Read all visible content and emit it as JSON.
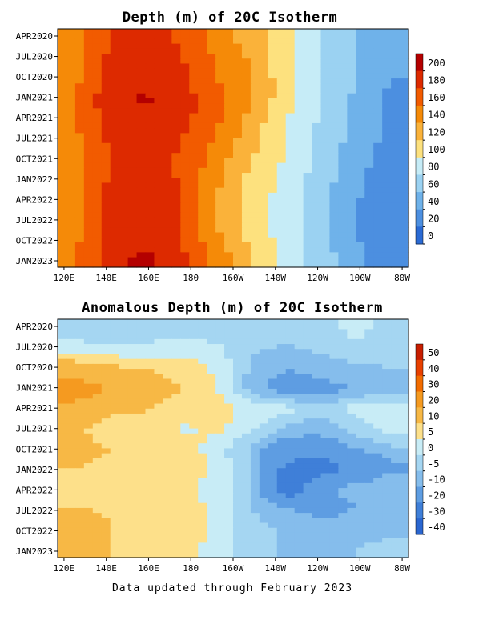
{
  "footer": "Data updated through February 2023",
  "chart_data": [
    {
      "type": "heatmap",
      "title": "Depth (m) of 20C Isotherm",
      "x_ticks": [
        "120E",
        "140E",
        "160E",
        "180",
        "160W",
        "140W",
        "120W",
        "100W",
        "80W"
      ],
      "x_values": [
        120,
        140,
        160,
        180,
        200,
        220,
        240,
        260,
        280
      ],
      "xlim": [
        117,
        283
      ],
      "y_ticks": [
        "APR2020",
        "JUL2020",
        "OCT2020",
        "JAN2021",
        "APR2021",
        "JUL2021",
        "OCT2021",
        "JAN2022",
        "APR2022",
        "JUL2022",
        "OCT2022",
        "JAN2023"
      ],
      "colorbar": {
        "labels": [
          "200",
          "180",
          "160",
          "140",
          "120",
          "100",
          "80",
          "60",
          "40",
          "20",
          "0"
        ],
        "colors": [
          "#b40000",
          "#dd2a00",
          "#f25b00",
          "#f58a08",
          "#fab23a",
          "#fde17e",
          "#c6ecf7",
          "#9bd2f2",
          "#6fb2ea",
          "#4c8fe0",
          "#2a6ad4"
        ]
      },
      "rows": [
        [
          150,
          180,
          188,
          178,
          150,
          130,
          105,
          80,
          60,
          45
        ],
        [
          150,
          185,
          192,
          182,
          158,
          138,
          105,
          80,
          58,
          42
        ],
        [
          155,
          188,
          195,
          185,
          162,
          140,
          108,
          82,
          60,
          40
        ],
        [
          158,
          195,
          202,
          190,
          168,
          140,
          108,
          82,
          55,
          35
        ],
        [
          160,
          190,
          198,
          188,
          165,
          135,
          100,
          78,
          55,
          38
        ],
        [
          155,
          185,
          192,
          182,
          160,
          128,
          98,
          75,
          52,
          35
        ],
        [
          155,
          180,
          188,
          178,
          152,
          122,
          98,
          72,
          50,
          30
        ],
        [
          150,
          182,
          190,
          178,
          145,
          115,
          95,
          70,
          45,
          25
        ],
        [
          150,
          190,
          196,
          182,
          142,
          110,
          92,
          65,
          42,
          25
        ],
        [
          152,
          190,
          192,
          178,
          140,
          108,
          90,
          65,
          40,
          22
        ],
        [
          155,
          188,
          195,
          182,
          145,
          115,
          90,
          65,
          40,
          25
        ],
        [
          158,
          192,
          205,
          185,
          155,
          120,
          95,
          70,
          45,
          30
        ]
      ]
    },
    {
      "type": "heatmap",
      "title": "Anomalous Depth (m) of 20C Isotherm",
      "x_ticks": [
        "120E",
        "140E",
        "160E",
        "180",
        "160W",
        "140W",
        "120W",
        "100W",
        "80W"
      ],
      "x_values": [
        120,
        140,
        160,
        180,
        200,
        220,
        240,
        260,
        280
      ],
      "xlim": [
        117,
        283
      ],
      "y_ticks": [
        "APR2020",
        "JUL2020",
        "OCT2020",
        "JAN2021",
        "APR2021",
        "JUL2021",
        "OCT2021",
        "JAN2022",
        "APR2022",
        "JUL2022",
        "OCT2022",
        "JAN2023"
      ],
      "colorbar": {
        "labels": [
          "50",
          "40",
          "30",
          "20",
          "10",
          "5",
          "0",
          "-5",
          "-10",
          "-20",
          "-30",
          "-40"
        ],
        "colors": [
          "#c81e00",
          "#e84000",
          "#f26c00",
          "#f59a20",
          "#f7b845",
          "#fde08a",
          "#c8ecf6",
          "#a5d6f2",
          "#85bdec",
          "#5e9de2",
          "#3f7fd8",
          "#2a66d0"
        ]
      },
      "rows": [
        [
          -3,
          -4,
          -3,
          -2,
          -4,
          -3,
          -2,
          -3,
          2,
          -3
        ],
        [
          2,
          1,
          1,
          3,
          2,
          -4,
          -6,
          -4,
          -2,
          -4
        ],
        [
          15,
          12,
          10,
          8,
          4,
          -6,
          -10,
          -8,
          -6,
          -5
        ],
        [
          25,
          20,
          15,
          10,
          6,
          -8,
          -14,
          -12,
          -10,
          -8
        ],
        [
          18,
          12,
          10,
          8,
          7,
          4,
          2,
          -4,
          3,
          2
        ],
        [
          12,
          6,
          10,
          4,
          6,
          2,
          -6,
          -8,
          -3,
          3
        ],
        [
          12,
          10,
          9,
          8,
          3,
          -6,
          -16,
          -14,
          -10,
          -6
        ],
        [
          10,
          9,
          8,
          8,
          4,
          -6,
          -22,
          -26,
          -18,
          -12
        ],
        [
          9,
          8,
          8,
          7,
          3,
          -5,
          -28,
          -12,
          -8,
          -5
        ],
        [
          10,
          9,
          8,
          7,
          4,
          -5,
          -10,
          -12,
          -10,
          -8
        ],
        [
          18,
          10,
          9,
          8,
          4,
          -3,
          -6,
          -8,
          -8,
          -6
        ],
        [
          12,
          10,
          8,
          8,
          3,
          -3,
          -6,
          -6,
          -5,
          -4
        ]
      ]
    }
  ]
}
